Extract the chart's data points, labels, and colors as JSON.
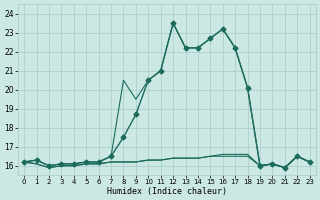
{
  "xlabel": "Humidex (Indice chaleur)",
  "background_color": "#cce8e4",
  "grid_color": "#a8ccc8",
  "line_color": "#1a6b5a",
  "xlim": [
    -0.5,
    23.5
  ],
  "ylim": [
    15.5,
    24.5
  ],
  "yticks": [
    16,
    17,
    18,
    19,
    20,
    21,
    22,
    23,
    24
  ],
  "xticks": [
    0,
    1,
    2,
    3,
    4,
    5,
    6,
    7,
    8,
    9,
    10,
    11,
    12,
    13,
    14,
    15,
    16,
    17,
    18,
    19,
    20,
    21,
    22,
    23
  ],
  "series_main_x": [
    0,
    1,
    2,
    3,
    4,
    5,
    6,
    7,
    8,
    9,
    10,
    11,
    12,
    13,
    14,
    15,
    16,
    17,
    18,
    19,
    20,
    21,
    22,
    23
  ],
  "series_main_y": [
    16.2,
    16.3,
    16.0,
    16.1,
    16.1,
    16.2,
    16.2,
    16.5,
    17.5,
    18.7,
    20.5,
    21.0,
    23.5,
    22.2,
    22.2,
    22.7,
    23.2,
    22.2,
    20.1,
    16.0,
    16.1,
    15.9,
    16.5,
    16.2
  ],
  "series_upper_x": [
    0,
    1,
    2,
    3,
    4,
    5,
    6,
    7,
    8,
    9,
    10,
    11,
    12,
    13,
    14,
    15,
    16,
    17,
    18,
    19,
    20,
    21,
    22,
    23
  ],
  "series_upper_y": [
    16.2,
    16.3,
    16.0,
    16.1,
    16.1,
    16.2,
    16.2,
    16.5,
    20.5,
    19.5,
    20.5,
    21.0,
    23.5,
    22.2,
    22.2,
    22.7,
    23.2,
    22.2,
    20.1,
    16.0,
    16.1,
    15.9,
    16.5,
    16.2
  ],
  "series_lower_x": [
    0,
    1,
    2,
    3,
    4,
    5,
    6,
    7,
    8,
    9,
    10,
    11,
    12,
    13,
    14,
    15,
    16,
    17,
    18,
    19,
    20,
    21,
    22,
    23
  ],
  "series_lower_y": [
    16.2,
    16.1,
    15.9,
    16.0,
    16.0,
    16.1,
    16.1,
    16.2,
    16.2,
    16.2,
    16.3,
    16.3,
    16.4,
    16.4,
    16.4,
    16.5,
    16.5,
    16.5,
    16.5,
    16.0,
    16.1,
    15.9,
    16.5,
    16.2
  ],
  "series_mid_x": [
    0,
    1,
    2,
    3,
    4,
    5,
    6,
    7,
    8,
    9,
    10,
    11,
    12,
    13,
    14,
    15,
    16,
    17,
    18,
    19,
    20,
    21,
    22,
    23
  ],
  "series_mid_y": [
    16.2,
    16.1,
    15.9,
    16.0,
    16.0,
    16.1,
    16.1,
    16.2,
    16.2,
    16.2,
    16.3,
    16.3,
    16.4,
    16.4,
    16.4,
    16.5,
    16.6,
    16.6,
    16.6,
    16.0,
    16.1,
    15.9,
    16.5,
    16.2
  ]
}
